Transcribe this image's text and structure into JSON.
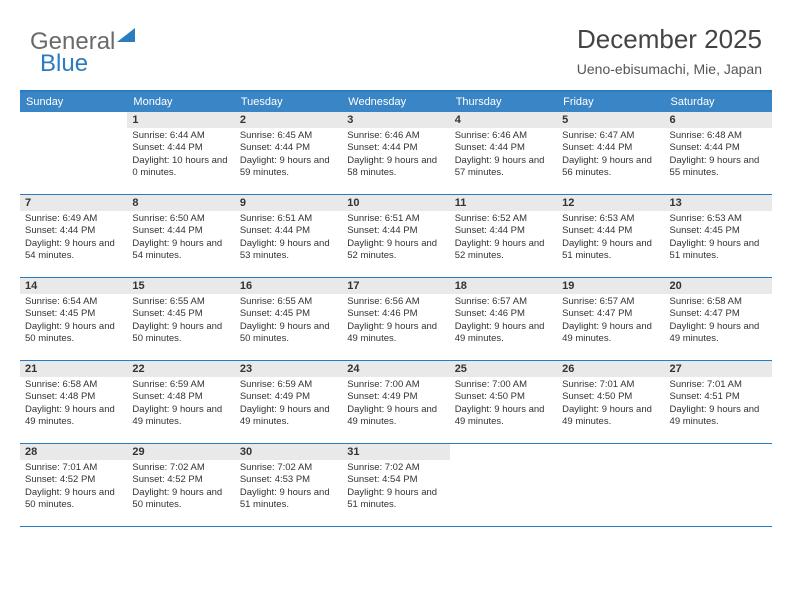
{
  "logo": {
    "part1": "General",
    "part2": "Blue"
  },
  "header": {
    "month_title": "December 2025",
    "location": "Ueno-ebisumachi, Mie, Japan"
  },
  "colors": {
    "header_bg": "#3a85c6",
    "border": "#2a7bbf",
    "daynum_bg": "#e9e9e9"
  },
  "weekdays": [
    "Sunday",
    "Monday",
    "Tuesday",
    "Wednesday",
    "Thursday",
    "Friday",
    "Saturday"
  ],
  "weeks": [
    [
      {
        "n": "",
        "sunrise": "",
        "sunset": "",
        "daylight": ""
      },
      {
        "n": "1",
        "sunrise": "Sunrise: 6:44 AM",
        "sunset": "Sunset: 4:44 PM",
        "daylight": "Daylight: 10 hours and 0 minutes."
      },
      {
        "n": "2",
        "sunrise": "Sunrise: 6:45 AM",
        "sunset": "Sunset: 4:44 PM",
        "daylight": "Daylight: 9 hours and 59 minutes."
      },
      {
        "n": "3",
        "sunrise": "Sunrise: 6:46 AM",
        "sunset": "Sunset: 4:44 PM",
        "daylight": "Daylight: 9 hours and 58 minutes."
      },
      {
        "n": "4",
        "sunrise": "Sunrise: 6:46 AM",
        "sunset": "Sunset: 4:44 PM",
        "daylight": "Daylight: 9 hours and 57 minutes."
      },
      {
        "n": "5",
        "sunrise": "Sunrise: 6:47 AM",
        "sunset": "Sunset: 4:44 PM",
        "daylight": "Daylight: 9 hours and 56 minutes."
      },
      {
        "n": "6",
        "sunrise": "Sunrise: 6:48 AM",
        "sunset": "Sunset: 4:44 PM",
        "daylight": "Daylight: 9 hours and 55 minutes."
      }
    ],
    [
      {
        "n": "7",
        "sunrise": "Sunrise: 6:49 AM",
        "sunset": "Sunset: 4:44 PM",
        "daylight": "Daylight: 9 hours and 54 minutes."
      },
      {
        "n": "8",
        "sunrise": "Sunrise: 6:50 AM",
        "sunset": "Sunset: 4:44 PM",
        "daylight": "Daylight: 9 hours and 54 minutes."
      },
      {
        "n": "9",
        "sunrise": "Sunrise: 6:51 AM",
        "sunset": "Sunset: 4:44 PM",
        "daylight": "Daylight: 9 hours and 53 minutes."
      },
      {
        "n": "10",
        "sunrise": "Sunrise: 6:51 AM",
        "sunset": "Sunset: 4:44 PM",
        "daylight": "Daylight: 9 hours and 52 minutes."
      },
      {
        "n": "11",
        "sunrise": "Sunrise: 6:52 AM",
        "sunset": "Sunset: 4:44 PM",
        "daylight": "Daylight: 9 hours and 52 minutes."
      },
      {
        "n": "12",
        "sunrise": "Sunrise: 6:53 AM",
        "sunset": "Sunset: 4:44 PM",
        "daylight": "Daylight: 9 hours and 51 minutes."
      },
      {
        "n": "13",
        "sunrise": "Sunrise: 6:53 AM",
        "sunset": "Sunset: 4:45 PM",
        "daylight": "Daylight: 9 hours and 51 minutes."
      }
    ],
    [
      {
        "n": "14",
        "sunrise": "Sunrise: 6:54 AM",
        "sunset": "Sunset: 4:45 PM",
        "daylight": "Daylight: 9 hours and 50 minutes."
      },
      {
        "n": "15",
        "sunrise": "Sunrise: 6:55 AM",
        "sunset": "Sunset: 4:45 PM",
        "daylight": "Daylight: 9 hours and 50 minutes."
      },
      {
        "n": "16",
        "sunrise": "Sunrise: 6:55 AM",
        "sunset": "Sunset: 4:45 PM",
        "daylight": "Daylight: 9 hours and 50 minutes."
      },
      {
        "n": "17",
        "sunrise": "Sunrise: 6:56 AM",
        "sunset": "Sunset: 4:46 PM",
        "daylight": "Daylight: 9 hours and 49 minutes."
      },
      {
        "n": "18",
        "sunrise": "Sunrise: 6:57 AM",
        "sunset": "Sunset: 4:46 PM",
        "daylight": "Daylight: 9 hours and 49 minutes."
      },
      {
        "n": "19",
        "sunrise": "Sunrise: 6:57 AM",
        "sunset": "Sunset: 4:47 PM",
        "daylight": "Daylight: 9 hours and 49 minutes."
      },
      {
        "n": "20",
        "sunrise": "Sunrise: 6:58 AM",
        "sunset": "Sunset: 4:47 PM",
        "daylight": "Daylight: 9 hours and 49 minutes."
      }
    ],
    [
      {
        "n": "21",
        "sunrise": "Sunrise: 6:58 AM",
        "sunset": "Sunset: 4:48 PM",
        "daylight": "Daylight: 9 hours and 49 minutes."
      },
      {
        "n": "22",
        "sunrise": "Sunrise: 6:59 AM",
        "sunset": "Sunset: 4:48 PM",
        "daylight": "Daylight: 9 hours and 49 minutes."
      },
      {
        "n": "23",
        "sunrise": "Sunrise: 6:59 AM",
        "sunset": "Sunset: 4:49 PM",
        "daylight": "Daylight: 9 hours and 49 minutes."
      },
      {
        "n": "24",
        "sunrise": "Sunrise: 7:00 AM",
        "sunset": "Sunset: 4:49 PM",
        "daylight": "Daylight: 9 hours and 49 minutes."
      },
      {
        "n": "25",
        "sunrise": "Sunrise: 7:00 AM",
        "sunset": "Sunset: 4:50 PM",
        "daylight": "Daylight: 9 hours and 49 minutes."
      },
      {
        "n": "26",
        "sunrise": "Sunrise: 7:01 AM",
        "sunset": "Sunset: 4:50 PM",
        "daylight": "Daylight: 9 hours and 49 minutes."
      },
      {
        "n": "27",
        "sunrise": "Sunrise: 7:01 AM",
        "sunset": "Sunset: 4:51 PM",
        "daylight": "Daylight: 9 hours and 49 minutes."
      }
    ],
    [
      {
        "n": "28",
        "sunrise": "Sunrise: 7:01 AM",
        "sunset": "Sunset: 4:52 PM",
        "daylight": "Daylight: 9 hours and 50 minutes."
      },
      {
        "n": "29",
        "sunrise": "Sunrise: 7:02 AM",
        "sunset": "Sunset: 4:52 PM",
        "daylight": "Daylight: 9 hours and 50 minutes."
      },
      {
        "n": "30",
        "sunrise": "Sunrise: 7:02 AM",
        "sunset": "Sunset: 4:53 PM",
        "daylight": "Daylight: 9 hours and 51 minutes."
      },
      {
        "n": "31",
        "sunrise": "Sunrise: 7:02 AM",
        "sunset": "Sunset: 4:54 PM",
        "daylight": "Daylight: 9 hours and 51 minutes."
      },
      {
        "n": "",
        "sunrise": "",
        "sunset": "",
        "daylight": ""
      },
      {
        "n": "",
        "sunrise": "",
        "sunset": "",
        "daylight": ""
      },
      {
        "n": "",
        "sunrise": "",
        "sunset": "",
        "daylight": ""
      }
    ]
  ]
}
